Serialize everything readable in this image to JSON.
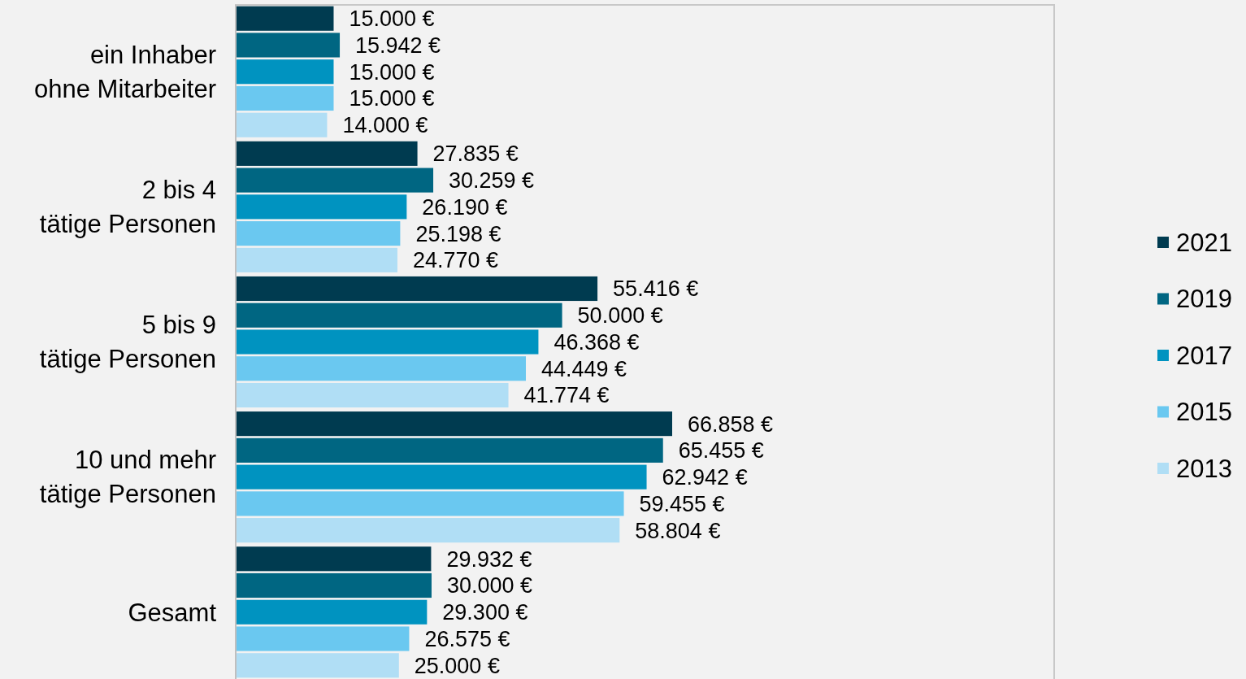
{
  "chart_data": {
    "type": "bar",
    "orientation": "horizontal",
    "categories": [
      "ein Inhaber\nohne Mitarbeiter",
      "2 bis 4\ntätige Personen",
      "5 bis 9\ntätige Personen",
      "10 und mehr\ntätige Personen",
      "Gesamt"
    ],
    "series": [
      {
        "name": "2021",
        "color": "#003b50",
        "values": [
          15000,
          27835,
          55416,
          66858,
          29932
        ],
        "value_labels": [
          "15.000 €",
          "27.835 €",
          "55.416 €",
          "66.858 €",
          "29.932 €"
        ]
      },
      {
        "name": "2019",
        "color": "#006682",
        "values": [
          15942,
          30259,
          50000,
          65455,
          30000
        ],
        "value_labels": [
          "15.942 €",
          "30.259 €",
          "50.000 €",
          "65.455 €",
          "30.000 €"
        ]
      },
      {
        "name": "2017",
        "color": "#0093c0",
        "values": [
          15000,
          26190,
          46368,
          62942,
          29300
        ],
        "value_labels": [
          "15.000 €",
          "26.190 €",
          "46.368 €",
          "62.942 €",
          "29.300 €"
        ]
      },
      {
        "name": "2015",
        "color": "#6ac8f0",
        "values": [
          15000,
          25198,
          44449,
          59455,
          26575
        ],
        "value_labels": [
          "15.000 €",
          "25.198 €",
          "44.449 €",
          "59.455 €",
          "26.575 €"
        ]
      },
      {
        "name": "2013",
        "color": "#b0def5",
        "values": [
          14000,
          24770,
          41774,
          58804,
          25000
        ],
        "value_labels": [
          "14.000 €",
          "24.770 €",
          "41.774 €",
          "58.804 €",
          "25.000 €"
        ]
      }
    ],
    "legend": "right",
    "tick_labels": "y"
  }
}
